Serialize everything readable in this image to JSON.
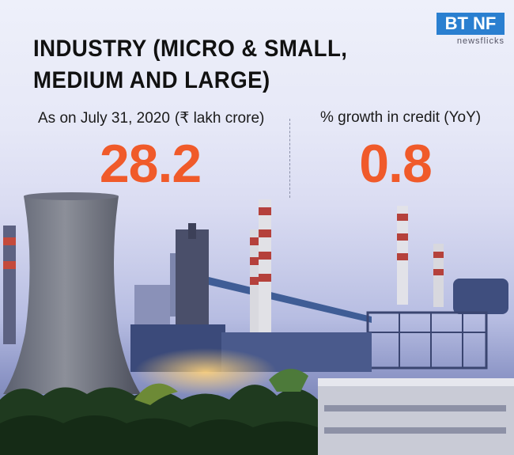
{
  "title": "INDUSTRY (MICRO & SMALL, MEDIUM AND LARGE)",
  "logo": {
    "main": "BT NF",
    "sub": "newsflicks"
  },
  "stat_left": {
    "label": "As on July 31, 2020",
    "unit": "(₹ lakh crore)",
    "value": "28.2"
  },
  "stat_right": {
    "label": "% growth in credit (YoY)",
    "value": "0.8"
  },
  "colors": {
    "accent": "#f05a2a",
    "text": "#111111",
    "logo_blue": "#2a7fd0"
  }
}
